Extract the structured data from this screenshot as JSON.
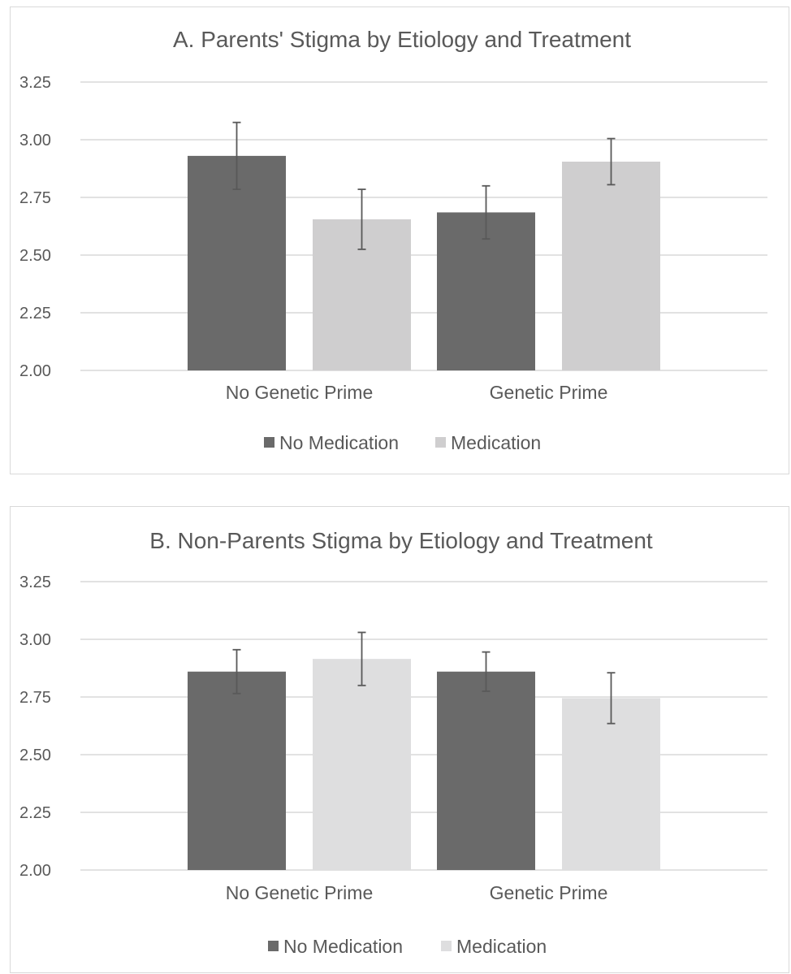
{
  "chart_data": [
    {
      "type": "bar",
      "title": "A. Parents' Stigma by Etiology and Treatment",
      "xlabel": "",
      "ylabel": "",
      "categories": [
        "No Genetic Prime",
        "Genetic Prime"
      ],
      "ylim": [
        2.0,
        3.25
      ],
      "yticks": [
        "2.00",
        "2.25",
        "2.50",
        "2.75",
        "3.00",
        "3.25"
      ],
      "grid": true,
      "legend_position": "bottom",
      "series": [
        {
          "name": "No Medication",
          "color": "#6a6a6a",
          "values": [
            2.93,
            2.685
          ],
          "error": [
            0.145,
            0.115
          ]
        },
        {
          "name": "Medication",
          "color": "#cfcecf",
          "values": [
            2.655,
            2.905
          ],
          "error": [
            0.13,
            0.1
          ]
        }
      ]
    },
    {
      "type": "bar",
      "title": "B. Non-Parents Stigma by Etiology and Treatment",
      "xlabel": "",
      "ylabel": "",
      "categories": [
        "No Genetic Prime",
        "Genetic Prime"
      ],
      "ylim": [
        2.0,
        3.25
      ],
      "yticks": [
        "2.00",
        "2.25",
        "2.50",
        "2.75",
        "3.00",
        "3.25"
      ],
      "grid": true,
      "legend_position": "bottom",
      "series": [
        {
          "name": "No Medication",
          "color": "#6a6a6a",
          "values": [
            2.86,
            2.86
          ],
          "error": [
            0.095,
            0.085
          ]
        },
        {
          "name": "Medication",
          "color": "#dededf",
          "values": [
            2.915,
            2.745
          ],
          "error": [
            0.115,
            0.11
          ]
        }
      ]
    }
  ]
}
